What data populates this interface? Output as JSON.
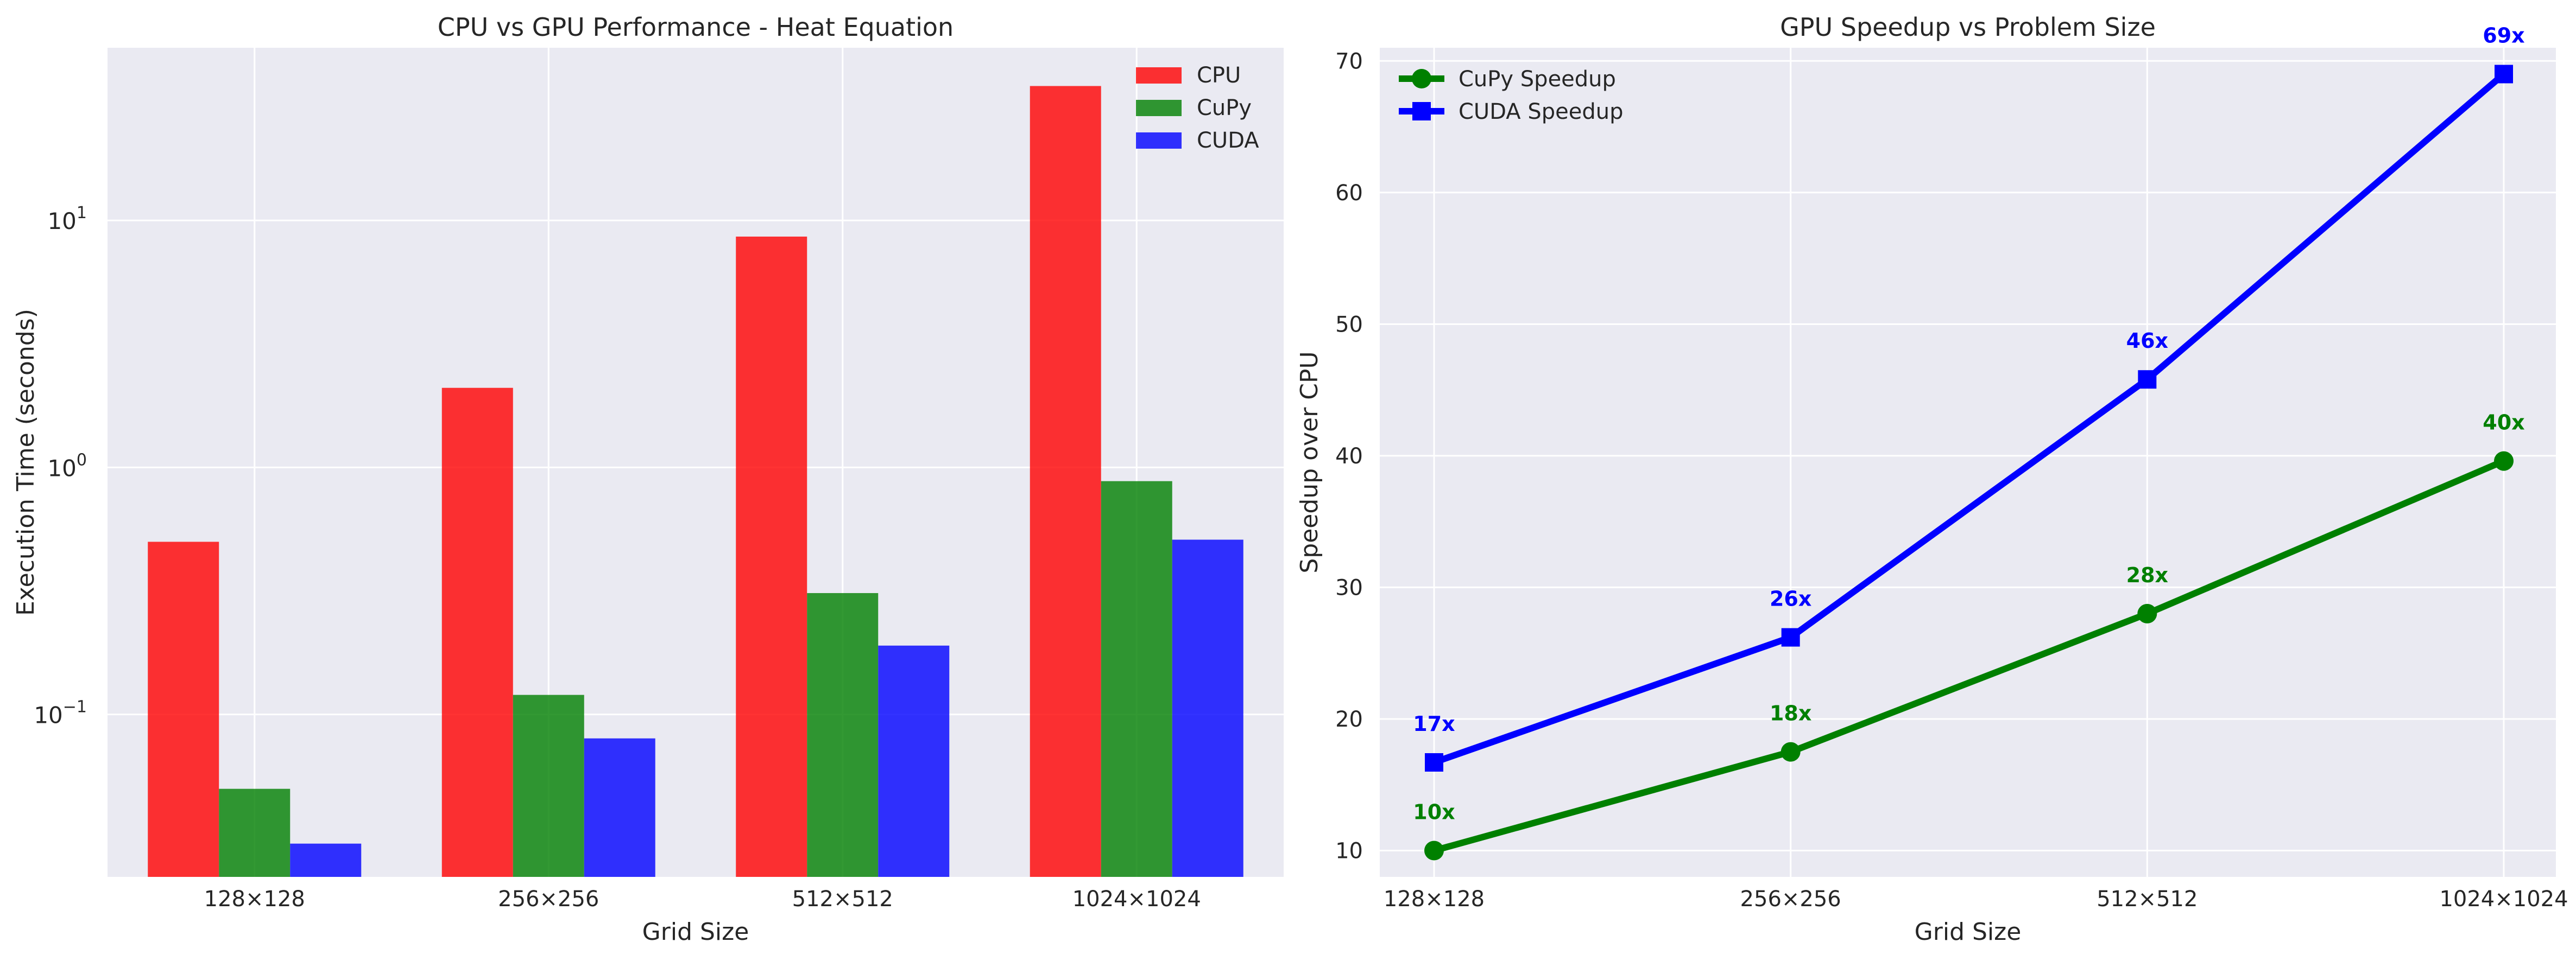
{
  "chart_data": [
    {
      "type": "bar",
      "title": "CPU vs GPU Performance - Heat Equation",
      "xlabel": "Grid Size",
      "ylabel": "Execution Time (seconds)",
      "yscale": "log",
      "ylim": [
        0.022,
        50
      ],
      "yticks": [
        {
          "value": 0.1,
          "base": "10",
          "exp": "−1"
        },
        {
          "value": 1,
          "base": "10",
          "exp": "0"
        },
        {
          "value": 10,
          "base": "10",
          "exp": "1"
        }
      ],
      "categories": [
        "128×128",
        "256×256",
        "512×512",
        "1024×1024"
      ],
      "series": [
        {
          "name": "CPU",
          "color": "#ff0000",
          "values": [
            0.5,
            2.1,
            8.6,
            35.0
          ]
        },
        {
          "name": "CuPy",
          "color": "#008000",
          "values": [
            0.05,
            0.12,
            0.31,
            0.88
          ]
        },
        {
          "name": "CUDA",
          "color": "#0000ff",
          "values": [
            0.03,
            0.08,
            0.19,
            0.51
          ]
        }
      ],
      "legend_position": "top-right",
      "grid": true
    },
    {
      "type": "line",
      "title": "GPU Speedup vs Problem Size",
      "xlabel": "Grid Size",
      "ylabel": "Speedup over CPU",
      "ylim": [
        8,
        71
      ],
      "yticks": [
        10,
        20,
        30,
        40,
        50,
        60,
        70
      ],
      "categories": [
        "128×128",
        "256×256",
        "512×512",
        "1024×1024"
      ],
      "series": [
        {
          "name": "CuPy Speedup",
          "color": "#008000",
          "marker": "circle",
          "values": [
            10.0,
            17.5,
            28.0,
            39.6
          ],
          "labels": [
            "10x",
            "18x",
            "28x",
            "40x"
          ]
        },
        {
          "name": "CUDA Speedup",
          "color": "#0000ff",
          "marker": "square",
          "values": [
            16.7,
            26.2,
            45.8,
            69.0
          ],
          "labels": [
            "17x",
            "26x",
            "46x",
            "69x"
          ]
        }
      ],
      "legend_position": "top-left",
      "grid": true
    }
  ]
}
